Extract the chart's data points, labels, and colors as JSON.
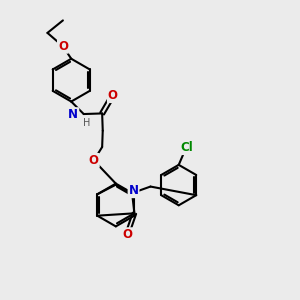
{
  "bg_color": "#ebebeb",
  "bond_color": "#000000",
  "N_color": "#0000cc",
  "O_color": "#cc0000",
  "Cl_color": "#008800",
  "H_color": "#555555",
  "line_width": 1.5,
  "font_size": 8.5,
  "figsize": [
    3.0,
    3.0
  ],
  "dpi": 100,
  "xlim": [
    0,
    10
  ],
  "ylim": [
    0,
    10
  ]
}
